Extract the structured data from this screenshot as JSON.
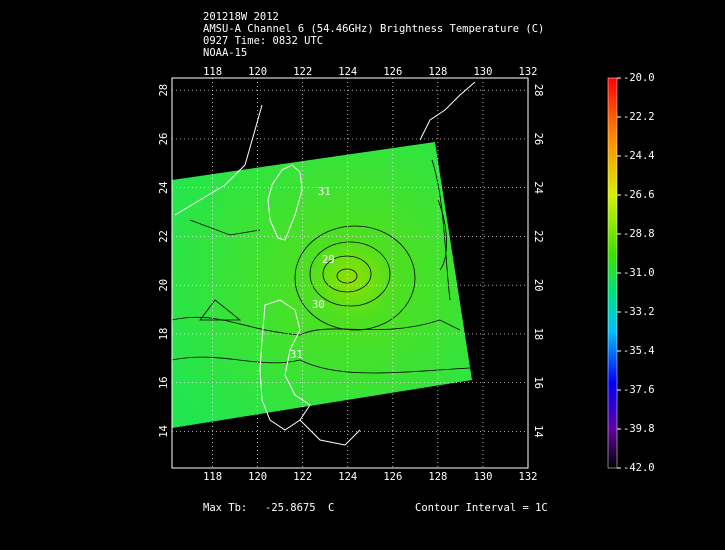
{
  "header": {
    "lines": [
      "201218W 2012",
      "AMSU-A Channel 6 (54.46GHz) Brightness Temperature (C)",
      "0927 Time: 0832 UTC",
      "NOAA-15"
    ]
  },
  "map": {
    "lon_range": [
      116.2,
      132
    ],
    "lat_range": [
      12.5,
      28.5
    ],
    "lon_ticks": [
      118,
      120,
      122,
      124,
      126,
      128,
      130,
      132
    ],
    "lat_ticks": [
      14,
      16,
      18,
      20,
      22,
      24,
      26,
      28
    ],
    "contour_labels": [
      "31",
      "29",
      "30",
      "31"
    ]
  },
  "colorbar": {
    "range": [
      -42,
      -20
    ],
    "ticks": [
      {
        "value": -20,
        "label": "-20.0"
      },
      {
        "value": -22.2,
        "label": "-22.2"
      },
      {
        "value": -24.4,
        "label": "-24.4"
      },
      {
        "value": -26.6,
        "label": "-26.6"
      },
      {
        "value": -28.8,
        "label": "-28.8"
      },
      {
        "value": -31,
        "label": "-31.0"
      },
      {
        "value": -33.2,
        "label": "-33.2"
      },
      {
        "value": -35.4,
        "label": "-35.4"
      },
      {
        "value": -37.6,
        "label": "-37.6"
      },
      {
        "value": -39.8,
        "label": "-39.8"
      },
      {
        "value": -42,
        "label": "-42.0"
      }
    ]
  },
  "footer": {
    "max_label": "Max Tb:",
    "max_value": -25.8675,
    "unit": "C",
    "contour_interval": "Contour Interval = 1C"
  }
}
